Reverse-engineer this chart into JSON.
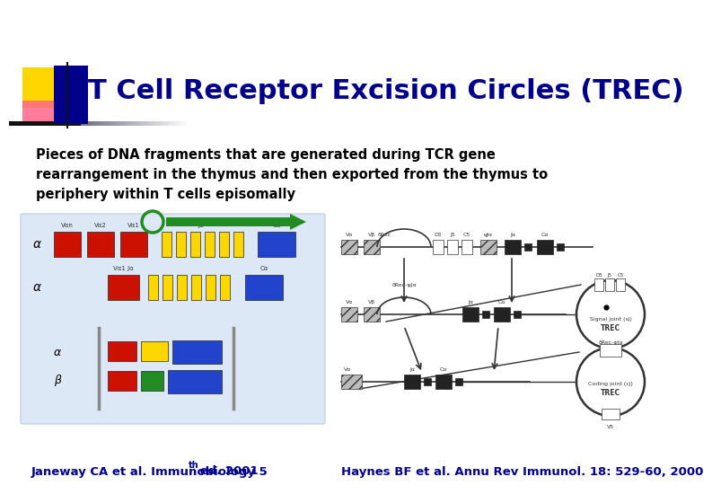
{
  "bg_color": "#ffffff",
  "title": "T Cell Receptor Excision Circles (TREC)",
  "title_color": "#00008B",
  "title_fontsize": 22,
  "body_text": "Pieces of DNA fragments that are generated during TCR gene\nrearrangement in the thymus and then exported from the thymus to\nperiphery within T cells episomally",
  "body_fontsize": 10.5,
  "body_color": "#000000",
  "footer_left": "Janeway CA et al. Immunobiology 5",
  "footer_left_super": "th",
  "footer_left_end": " ed. 2001",
  "footer_right": "Haynes BF et al. Annu Rev Immunol. 18: 529-60, 2000",
  "footer_fontsize": 9.5,
  "footer_color": "#00008B",
  "logo_yellow": "#FFD700",
  "logo_pink": "#FF6688",
  "logo_blue": "#00008B",
  "header_bar_color": "#222222"
}
